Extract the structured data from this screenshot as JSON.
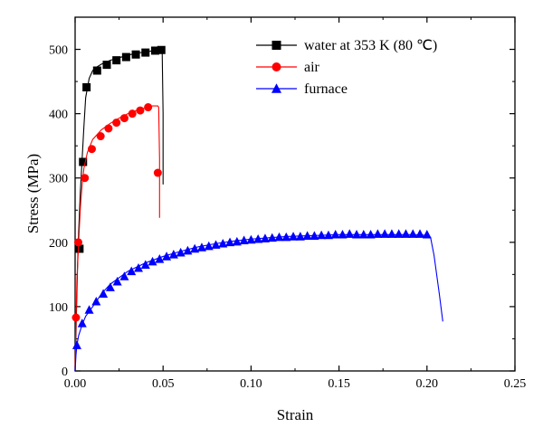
{
  "chart_data": {
    "type": "line",
    "title": "",
    "xlabel": "Strain",
    "ylabel": "Stress (MPa)",
    "xlim": [
      0,
      0.25
    ],
    "ylim": [
      0,
      550
    ],
    "x_ticks": [
      0,
      0.05,
      0.1,
      0.15,
      0.2,
      0.25
    ],
    "x_tick_labels": [
      "0.00",
      "0.05",
      "0.10",
      "0.15",
      "0.20",
      "0.25"
    ],
    "y_ticks": [
      0,
      100,
      200,
      300,
      400,
      500
    ],
    "y_tick_labels": [
      "0",
      "100",
      "200",
      "300",
      "400",
      "500"
    ],
    "grid": false,
    "legend_position": "top-right",
    "series": [
      {
        "name": "water at 353 K (80 ℃)",
        "color": "#000000",
        "marker": "square",
        "line_x": [
          0,
          0.0005,
          0.001,
          0.0015,
          0.002,
          0.003,
          0.004,
          0.005,
          0.006,
          0.008,
          0.01,
          0.012,
          0.015,
          0.02,
          0.025,
          0.03,
          0.035,
          0.04,
          0.045,
          0.048,
          0.049,
          0.0495,
          0.05,
          0.05
        ],
        "line_y": [
          0,
          60,
          120,
          175,
          215,
          280,
          330,
          380,
          425,
          455,
          467,
          472,
          477,
          483,
          487,
          491,
          494,
          496,
          498,
          499,
          499,
          495,
          400,
          290
        ],
        "marker_x": [
          0.0025,
          0.0045,
          0.0065,
          0.0125,
          0.018,
          0.0235,
          0.029,
          0.0345,
          0.04,
          0.0455,
          0.049
        ],
        "marker_y": [
          190,
          325,
          441,
          467,
          476,
          483,
          488,
          492,
          495,
          498,
          499
        ]
      },
      {
        "name": "air",
        "color": "#ff0000",
        "marker": "circle",
        "line_x": [
          0,
          0.0005,
          0.001,
          0.002,
          0.003,
          0.004,
          0.005,
          0.007,
          0.01,
          0.015,
          0.02,
          0.025,
          0.03,
          0.035,
          0.04,
          0.044,
          0.047,
          0.0475,
          0.048,
          0.048
        ],
        "line_y": [
          0,
          80,
          140,
          200,
          255,
          290,
          315,
          340,
          360,
          375,
          385,
          393,
          400,
          405,
          409,
          412,
          412,
          410,
          330,
          238
        ],
        "marker_x": [
          0.0005,
          0.0018,
          0.0055,
          0.0095,
          0.0145,
          0.019,
          0.0235,
          0.028,
          0.0325,
          0.037,
          0.0415,
          0.047
        ],
        "marker_y": [
          83,
          200,
          300,
          345,
          365,
          377,
          386,
          393,
          400,
          405,
          410,
          308
        ]
      },
      {
        "name": "furnace",
        "color": "#0000ff",
        "marker": "triangle",
        "line_x": [
          0,
          0.0005,
          0.001,
          0.002,
          0.004,
          0.006,
          0.01,
          0.015,
          0.02,
          0.03,
          0.04,
          0.05,
          0.06,
          0.07,
          0.08,
          0.09,
          0.1,
          0.11,
          0.12,
          0.13,
          0.14,
          0.15,
          0.16,
          0.17,
          0.18,
          0.19,
          0.2,
          0.202,
          0.204,
          0.207,
          0.209
        ],
        "line_y": [
          0,
          25,
          40,
          55,
          72,
          85,
          100,
          120,
          135,
          155,
          168,
          178,
          186,
          193,
          198,
          202,
          205,
          207,
          209,
          210,
          211,
          212,
          212,
          212,
          212,
          212,
          211,
          208,
          180,
          120,
          77
        ],
        "marker_x": [
          0.001,
          0.004,
          0.008,
          0.012,
          0.016,
          0.02,
          0.024,
          0.028,
          0.032,
          0.036,
          0.04,
          0.044,
          0.048,
          0.052,
          0.056,
          0.06,
          0.064,
          0.068,
          0.072,
          0.076,
          0.08,
          0.084,
          0.088,
          0.092,
          0.096,
          0.1,
          0.104,
          0.108,
          0.112,
          0.116,
          0.12,
          0.124,
          0.128,
          0.132,
          0.136,
          0.14,
          0.144,
          0.148,
          0.152,
          0.156,
          0.16,
          0.164,
          0.168,
          0.172,
          0.176,
          0.18,
          0.184,
          0.188,
          0.192,
          0.196,
          0.2
        ],
        "marker_y": [
          40,
          74,
          95,
          108,
          120,
          130,
          139,
          147,
          155,
          160,
          165,
          170,
          174,
          178,
          181,
          184,
          187,
          190,
          192,
          194,
          196,
          198,
          200,
          201,
          203,
          204,
          205,
          206,
          207,
          208,
          208,
          209,
          209,
          210,
          210,
          211,
          211,
          212,
          212,
          213,
          212,
          212,
          212,
          213,
          213,
          213,
          213,
          213,
          213,
          213,
          212
        ]
      }
    ]
  }
}
